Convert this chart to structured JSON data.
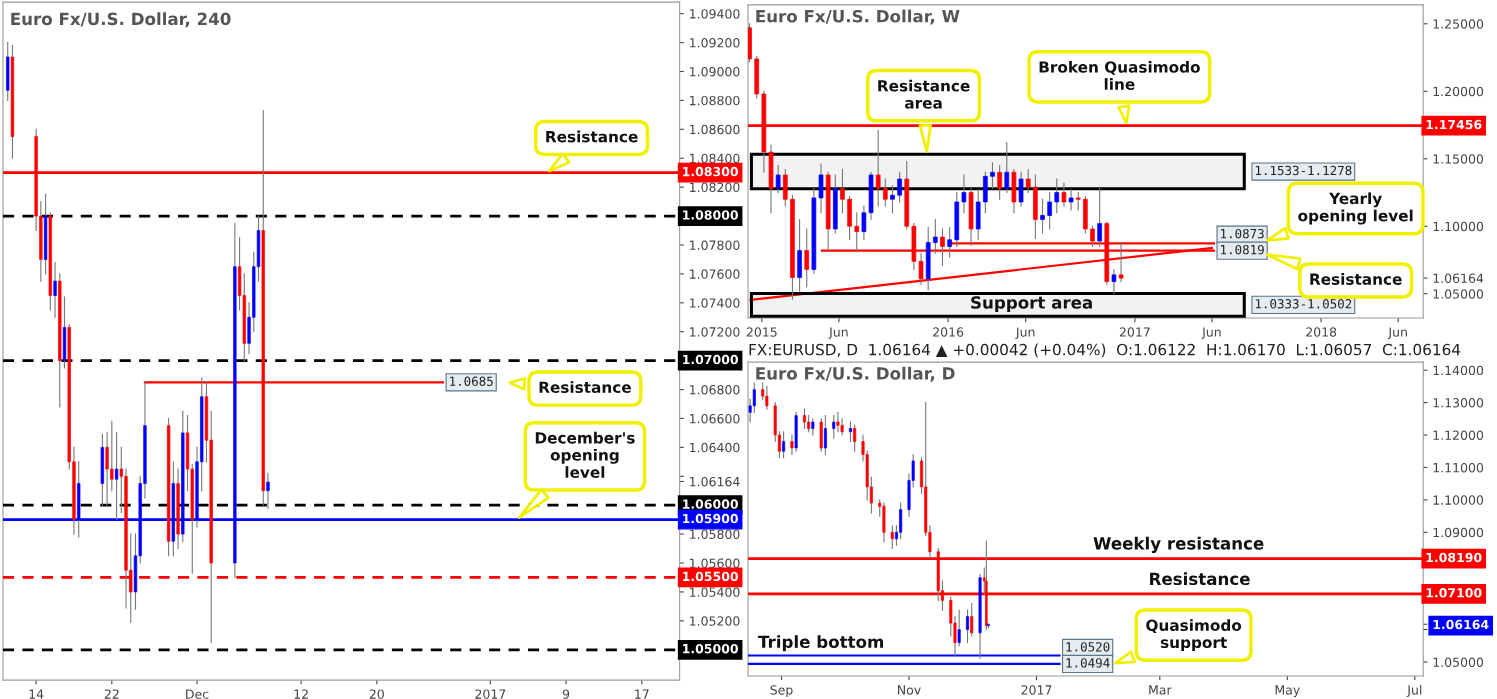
{
  "chart_data": [
    {
      "type": "candlestick",
      "title": "Euro Fx/U.S. Dollar, 240",
      "x": [
        "2016-11-11T00:00",
        "2016-11-11T12:00",
        "2016-11-14T00:00",
        "2016-11-14T12:00",
        "2016-11-15T00:00",
        "2016-11-15T12:00",
        "2016-11-16T00:00",
        "2016-11-16T12:00",
        "2016-11-17T00:00",
        "2016-11-17T12:00",
        "2016-11-18T00:00",
        "2016-11-18T12:00",
        "2016-11-21T00:00",
        "2016-11-21T12:00",
        "2016-11-22T00:00",
        "2016-11-22T12:00",
        "2016-11-23T00:00",
        "2016-11-23T12:00",
        "2016-11-24T00:00",
        "2016-11-24T12:00",
        "2016-11-25T00:00",
        "2016-11-25T12:00",
        "2016-11-28T00:00",
        "2016-11-28T12:00",
        "2016-11-29T00:00",
        "2016-11-29T12:00",
        "2016-11-30T00:00",
        "2016-11-30T12:00",
        "2016-12-01T00:00",
        "2016-12-01T12:00",
        "2016-12-02T00:00",
        "2016-12-02T12:00",
        "2016-12-05T00:00",
        "2016-12-05T12:00",
        "2016-12-06T00:00",
        "2016-12-06T12:00",
        "2016-12-07T00:00",
        "2016-12-07T12:00",
        "2016-12-08T00:00",
        "2016-12-08T12:00"
      ],
      "ohlc": [
        [
          1.0887,
          1.092,
          1.088,
          1.091
        ],
        [
          1.091,
          1.0918,
          1.084,
          1.0855
        ],
        [
          1.0855,
          1.086,
          1.079,
          1.08
        ],
        [
          1.08,
          1.081,
          1.0755,
          1.077
        ],
        [
          1.077,
          1.0815,
          1.076,
          1.08
        ],
        [
          1.08,
          1.0802,
          1.0735,
          1.0745
        ],
        [
          1.0745,
          1.0768,
          1.073,
          1.0755
        ],
        [
          1.0755,
          1.076,
          1.0668,
          1.07
        ],
        [
          1.07,
          1.0744,
          1.0695,
          1.0723
        ],
        [
          1.0723,
          1.0725,
          1.0625,
          1.063
        ],
        [
          1.063,
          1.064,
          1.058,
          1.059
        ],
        [
          1.059,
          1.063,
          1.0578,
          1.0615
        ],
        [
          1.0615,
          1.0649,
          1.06,
          1.064
        ],
        [
          1.064,
          1.065,
          1.06,
          1.0625
        ],
        [
          1.0625,
          1.0658,
          1.061,
          1.0618
        ],
        [
          1.0618,
          1.065,
          1.059,
          1.0625
        ],
        [
          1.0625,
          1.064,
          1.0595,
          1.062
        ],
        [
          1.062,
          1.0625,
          1.0529,
          1.0555
        ],
        [
          1.0555,
          1.058,
          1.0519,
          1.054
        ],
        [
          1.054,
          1.058,
          1.0528,
          1.0565
        ],
        [
          1.0565,
          1.062,
          1.056,
          1.0615
        ],
        [
          1.0615,
          1.0685,
          1.0605,
          1.0655
        ],
        [
          1.0655,
          1.066,
          1.0565,
          1.0575
        ],
        [
          1.0575,
          1.063,
          1.0565,
          1.0615
        ],
        [
          1.0615,
          1.0625,
          1.057,
          1.058
        ],
        [
          1.058,
          1.0665,
          1.0575,
          1.065
        ],
        [
          1.065,
          1.0662,
          1.061,
          1.0625
        ],
        [
          1.0625,
          1.0628,
          1.0553,
          1.059
        ],
        [
          1.059,
          1.064,
          1.0585,
          1.063
        ],
        [
          1.063,
          1.0688,
          1.061,
          1.0675
        ],
        [
          1.0675,
          1.0685,
          1.063,
          1.0645
        ],
        [
          1.0645,
          1.0665,
          1.0505,
          1.056
        ],
        [
          1.056,
          1.0795,
          1.055,
          1.0765
        ],
        [
          1.0765,
          1.0785,
          1.0735,
          1.0745
        ],
        [
          1.0745,
          1.076,
          1.0699,
          1.0712
        ],
        [
          1.0712,
          1.074,
          1.0705,
          1.073
        ],
        [
          1.073,
          1.0775,
          1.072,
          1.0765
        ],
        [
          1.0765,
          1.08,
          1.0755,
          1.079
        ],
        [
          1.079,
          1.0873,
          1.06,
          1.061
        ],
        [
          1.061,
          1.0622,
          1.0598,
          1.0616
        ]
      ],
      "colors": [
        "#0000ff",
        "#ff0000",
        "#ff0000",
        "#ff0000",
        "#0000ff",
        "#ff0000",
        "#0000ff",
        "#ff0000",
        "#0000ff",
        "#ff0000",
        "#ff0000",
        "#0000ff",
        "#0000ff",
        "#ff0000",
        "#ff0000",
        "#0000ff",
        "#ff0000",
        "#ff0000",
        "#ff0000",
        "#0000ff",
        "#0000ff",
        "#0000ff",
        "#ff0000",
        "#0000ff",
        "#ff0000",
        "#0000ff",
        "#ff0000",
        "#ff0000",
        "#0000ff",
        "#0000ff",
        "#ff0000",
        "#ff0000",
        "#0000ff",
        "#ff0000",
        "#ff0000",
        "#0000ff",
        "#0000ff",
        "#0000ff",
        "#ff0000",
        "#0000ff"
      ],
      "series": [
        {
          "type": "line",
          "x": [
            "2016-11-25T12:00",
            "2016-12-27"
          ],
          "values": [
            1.0685,
            1.0685
          ],
          "color": "#ff0000",
          "value_labels": [
            null,
            "1.0685"
          ]
        }
      ],
      "xlim": [
        "2016-11-10T12:00",
        "2017-01-21"
      ],
      "xticks": [
        {
          "value": "2016-11-14",
          "label": "14"
        },
        {
          "value": "2016-11-22",
          "label": "22"
        },
        {
          "value": "2016-12-01",
          "label": "Dec"
        },
        {
          "value": "2016-12-12",
          "label": "12"
        },
        {
          "value": "2016-12-20",
          "label": "20"
        },
        {
          "value": "2017-01-01",
          "label": "2017"
        },
        {
          "value": "2017-01-09",
          "label": "9"
        },
        {
          "value": "2017-01-17",
          "label": "17"
        }
      ],
      "ylim": [
        1.0479,
        1.0948
      ],
      "yticks": [
        {
          "value": 1.05,
          "label": null
        },
        {
          "value": 1.052,
          "label": "1.05200"
        },
        {
          "value": 1.054,
          "label": "1.05400"
        },
        {
          "value": 1.056,
          "label": "1.05600"
        },
        {
          "value": 1.058,
          "label": "1.05800"
        },
        {
          "value": 1.06,
          "label": null
        },
        {
          "value": 1.06164,
          "label": "1.06164"
        },
        {
          "value": 1.062,
          "label": null
        },
        {
          "value": 1.064,
          "label": "1.06400"
        },
        {
          "value": 1.066,
          "label": "1.06600"
        },
        {
          "value": 1.068,
          "label": "1.06800"
        },
        {
          "value": 1.07,
          "label": null
        },
        {
          "value": 1.072,
          "label": "1.07200"
        },
        {
          "value": 1.074,
          "label": "1.07400"
        },
        {
          "value": 1.076,
          "label": "1.07600"
        },
        {
          "value": 1.078,
          "label": "1.07800"
        },
        {
          "value": 1.08,
          "label": null
        },
        {
          "value": 1.082,
          "label": "1.08200"
        },
        {
          "value": 1.084,
          "label": "1.08400"
        },
        {
          "value": 1.086,
          "label": "1.08600"
        },
        {
          "value": 1.088,
          "label": "1.08800"
        },
        {
          "value": 1.09,
          "label": "1.09000"
        },
        {
          "value": 1.092,
          "label": "1.09200"
        },
        {
          "value": 1.094,
          "label": "1.09400"
        }
      ],
      "ref_lines": [
        {
          "axis": "y",
          "value": 1.083,
          "label": "1.08300",
          "color": "#ff0000",
          "line_style": "solid"
        },
        {
          "axis": "y",
          "value": 1.08,
          "label": "1.08000",
          "color": "#000000",
          "line_style": "dashed"
        },
        {
          "axis": "y",
          "value": 1.07,
          "label": "1.07000",
          "color": "#000000",
          "line_style": "dashed"
        },
        {
          "axis": "y",
          "value": 1.06,
          "label": "1.06000",
          "color": "#000000",
          "line_style": "dashed"
        },
        {
          "axis": "y",
          "value": 1.059,
          "label": "1.05900",
          "color": "#0000ff",
          "line_style": "solid"
        },
        {
          "axis": "y",
          "value": 1.055,
          "label": "1.05500",
          "color": "#ff0000",
          "line_style": "dashed"
        },
        {
          "axis": "y",
          "value": 1.05,
          "label": "1.05000",
          "color": "#000000",
          "line_style": "dashed"
        }
      ],
      "annotations": [
        {
          "text": "Resistance",
          "x": "2017-01-07",
          "y": 1.083
        },
        "Resistance",
        "December's\nopening\nlevel"
      ]
    },
    {
      "type": "candlestick",
      "title": "Euro Fx/U.S. Dollar, W",
      "x": [
        "2014-12-08",
        "2014-12-22",
        "2015-01-05",
        "2015-01-19",
        "2015-02-02",
        "2015-02-16",
        "2015-03-02",
        "2015-03-16",
        "2015-03-30",
        "2015-04-13",
        "2015-04-27",
        "2015-05-11",
        "2015-05-25",
        "2015-06-08",
        "2015-06-22",
        "2015-07-06",
        "2015-07-20",
        "2015-08-03",
        "2015-08-17",
        "2015-08-31",
        "2015-09-14",
        "2015-09-28",
        "2015-10-12",
        "2015-10-26",
        "2015-11-09",
        "2015-11-23",
        "2015-12-07",
        "2015-12-21",
        "2016-01-04",
        "2016-01-18",
        "2016-02-01",
        "2016-02-15",
        "2016-02-29",
        "2016-03-14",
        "2016-03-28",
        "2016-04-11",
        "2016-04-25",
        "2016-05-09",
        "2016-05-23",
        "2016-06-06",
        "2016-06-20",
        "2016-07-04",
        "2016-07-18",
        "2016-08-01",
        "2016-08-15",
        "2016-08-29",
        "2016-09-12",
        "2016-09-26",
        "2016-10-10",
        "2016-10-24",
        "2016-11-07",
        "2016-11-21",
        "2016-12-05"
      ],
      "ohlc": [
        [
          1.247,
          1.25,
          1.222,
          1.224
        ],
        [
          1.224,
          1.226,
          1.195,
          1.198
        ],
        [
          1.198,
          1.2,
          1.14,
          1.155
        ],
        [
          1.155,
          1.16,
          1.11,
          1.128
        ],
        [
          1.128,
          1.145,
          1.125,
          1.138
        ],
        [
          1.138,
          1.142,
          1.115,
          1.12
        ],
        [
          1.12,
          1.123,
          1.046,
          1.062
        ],
        [
          1.062,
          1.105,
          1.052,
          1.082
        ],
        [
          1.082,
          1.098,
          1.055,
          1.068
        ],
        [
          1.068,
          1.128,
          1.065,
          1.121
        ],
        [
          1.121,
          1.146,
          1.11,
          1.138
        ],
        [
          1.138,
          1.14,
          1.082,
          1.098
        ],
        [
          1.098,
          1.138,
          1.095,
          1.128
        ],
        [
          1.128,
          1.142,
          1.11,
          1.12
        ],
        [
          1.12,
          1.122,
          1.09,
          1.1
        ],
        [
          1.1,
          1.11,
          1.081,
          1.096
        ],
        [
          1.096,
          1.115,
          1.09,
          1.11
        ],
        [
          1.11,
          1.14,
          1.105,
          1.138
        ],
        [
          1.138,
          1.171,
          1.115,
          1.128
        ],
        [
          1.128,
          1.135,
          1.115,
          1.12
        ],
        [
          1.12,
          1.13,
          1.11,
          1.123
        ],
        [
          1.123,
          1.14,
          1.118,
          1.135
        ],
        [
          1.135,
          1.148,
          1.098,
          1.1
        ],
        [
          1.1,
          1.102,
          1.068,
          1.074
        ],
        [
          1.074,
          1.08,
          1.057,
          1.061
        ],
        [
          1.061,
          1.099,
          1.053,
          1.088
        ],
        [
          1.088,
          1.105,
          1.08,
          1.092
        ],
        [
          1.092,
          1.098,
          1.071,
          1.085
        ],
        [
          1.085,
          1.099,
          1.077,
          1.09
        ],
        [
          1.09,
          1.125,
          1.085,
          1.118
        ],
        [
          1.118,
          1.138,
          1.11,
          1.125
        ],
        [
          1.125,
          1.128,
          1.086,
          1.098
        ],
        [
          1.098,
          1.127,
          1.09,
          1.118
        ],
        [
          1.118,
          1.14,
          1.11,
          1.137
        ],
        [
          1.137,
          1.147,
          1.128,
          1.14
        ],
        [
          1.14,
          1.145,
          1.12,
          1.128
        ],
        [
          1.128,
          1.162,
          1.125,
          1.14
        ],
        [
          1.14,
          1.142,
          1.11,
          1.118
        ],
        [
          1.118,
          1.14,
          1.115,
          1.135
        ],
        [
          1.135,
          1.142,
          1.125,
          1.129
        ],
        [
          1.129,
          1.138,
          1.091,
          1.105
        ],
        [
          1.105,
          1.12,
          1.095,
          1.108
        ],
        [
          1.108,
          1.125,
          1.098,
          1.118
        ],
        [
          1.118,
          1.135,
          1.11,
          1.125
        ],
        [
          1.125,
          1.132,
          1.115,
          1.118
        ],
        [
          1.118,
          1.127,
          1.112,
          1.121
        ],
        [
          1.121,
          1.125,
          1.112,
          1.12
        ],
        [
          1.12,
          1.122,
          1.095,
          1.098
        ],
        [
          1.098,
          1.1,
          1.085,
          1.089
        ],
        [
          1.089,
          1.129,
          1.085,
          1.102
        ],
        [
          1.102,
          1.103,
          1.057,
          1.059
        ],
        [
          1.059,
          1.068,
          1.05,
          1.064
        ],
        [
          1.064,
          1.088,
          1.059,
          1.0616
        ]
      ],
      "colors": [
        "#ff0000",
        "#ff0000",
        "#ff0000",
        "#ff0000",
        "#0000ff",
        "#ff0000",
        "#ff0000",
        "#0000ff",
        "#ff0000",
        "#0000ff",
        "#0000ff",
        "#ff0000",
        "#0000ff",
        "#ff0000",
        "#ff0000",
        "#ff0000",
        "#0000ff",
        "#0000ff",
        "#ff0000",
        "#ff0000",
        "#0000ff",
        "#0000ff",
        "#ff0000",
        "#ff0000",
        "#ff0000",
        "#0000ff",
        "#0000ff",
        "#ff0000",
        "#0000ff",
        "#0000ff",
        "#0000ff",
        "#ff0000",
        "#0000ff",
        "#0000ff",
        "#0000ff",
        "#ff0000",
        "#0000ff",
        "#ff0000",
        "#0000ff",
        "#ff0000",
        "#ff0000",
        "#0000ff",
        "#0000ff",
        "#0000ff",
        "#ff0000",
        "#0000ff",
        "#ff0000",
        "#ff0000",
        "#ff0000",
        "#0000ff",
        "#ff0000",
        "#0000ff",
        "#ff0000"
      ],
      "series": [
        {
          "type": "line",
          "x": [
            "2016-01-08",
            "2017-06-05"
          ],
          "values": [
            1.0873,
            1.0873
          ],
          "color": "#ff0000",
          "value_labels": [
            null,
            "1.0873"
          ]
        },
        {
          "type": "line",
          "x": [
            "2015-04-29",
            "2017-06-05"
          ],
          "values": [
            1.0819,
            1.0819
          ],
          "color": "#ff0000",
          "value_labels": [
            null,
            "1.0819"
          ]
        },
        {
          "type": "line",
          "x": [
            "2014-12-10",
            "2017-06-01"
          ],
          "values": [
            1.0455,
            1.0839
          ],
          "color": "#ff0000"
        }
      ],
      "bands": [
        {
          "axis": "y",
          "from": 1.1278,
          "to": 1.1533,
          "label": "1.1533-1.1278",
          "color": "#000000"
        },
        {
          "axis": "y",
          "from": 1.0333,
          "to": 1.0502,
          "label": "1.0333-1.0502",
          "color": "#000000"
        }
      ],
      "xlim": [
        "2014-12-05",
        "2018-07-20"
      ],
      "xticks": [
        {
          "value": "2015-01-01",
          "label": "2015"
        },
        {
          "value": "2015-06-01",
          "label": "Jun"
        },
        {
          "value": "2016-01-01",
          "label": "2016"
        },
        {
          "value": "2016-06-01",
          "label": "Jun"
        },
        {
          "value": "2017-01-01",
          "label": "2017"
        },
        {
          "value": "2017-06-01",
          "label": "Jun"
        },
        {
          "value": "2018-01-01",
          "label": "2018"
        },
        {
          "value": "2018-06-01",
          "label": "Jun"
        }
      ],
      "ylim": [
        1.032,
        1.264
      ],
      "yticks": [
        {
          "value": 1.05,
          "label": "1.05000"
        },
        {
          "value": 1.06164,
          "label": "1.06164"
        },
        {
          "value": 1.1,
          "label": "1.10000"
        },
        {
          "value": 1.15,
          "label": "1.15000"
        },
        {
          "value": 1.2,
          "label": "1.20000"
        },
        {
          "value": 1.25,
          "label": "1.25000"
        }
      ],
      "ref_lines": [
        {
          "axis": "y",
          "value": 1.17456,
          "label": "1.17456",
          "color": "#ff0000",
          "line_style": "solid"
        }
      ],
      "annotations": [
        "Resistance\narea",
        "Broken Quasimodo\nline",
        "Yearly\nopening level",
        "Resistance",
        "Support area"
      ]
    },
    {
      "type": "candlestick",
      "title": "Euro Fx/U.S. Dollar, D",
      "subtitle": "FX:EURUSD, D  1.06164 ▲ +0.00042 (+0.04%)  O:1.06122  H:1.06170  L:1.06057  C:1.06164",
      "x": [
        "2016-08-17",
        "2016-08-19",
        "2016-08-23",
        "2016-08-25",
        "2016-08-29",
        "2016-08-31",
        "2016-09-02",
        "2016-09-06",
        "2016-09-08",
        "2016-09-12",
        "2016-09-14",
        "2016-09-16",
        "2016-09-20",
        "2016-09-22",
        "2016-09-26",
        "2016-09-28",
        "2016-09-30",
        "2016-10-04",
        "2016-10-06",
        "2016-10-10",
        "2016-10-12",
        "2016-10-14",
        "2016-10-18",
        "2016-10-20",
        "2016-10-24",
        "2016-10-26",
        "2016-10-28",
        "2016-11-01",
        "2016-11-03",
        "2016-11-07",
        "2016-11-09",
        "2016-11-11",
        "2016-11-15",
        "2016-11-17",
        "2016-11-21",
        "2016-11-23",
        "2016-11-25",
        "2016-11-29",
        "2016-12-01",
        "2016-12-05",
        "2016-12-07",
        "2016-12-08",
        "2016-12-09"
      ],
      "ohlc": [
        [
          1.127,
          1.131,
          1.124,
          1.129
        ],
        [
          1.129,
          1.136,
          1.127,
          1.134
        ],
        [
          1.134,
          1.136,
          1.131,
          1.132
        ],
        [
          1.132,
          1.135,
          1.128,
          1.129
        ],
        [
          1.129,
          1.13,
          1.118,
          1.12
        ],
        [
          1.12,
          1.121,
          1.113,
          1.115
        ],
        [
          1.115,
          1.121,
          1.113,
          1.118
        ],
        [
          1.118,
          1.12,
          1.114,
          1.116
        ],
        [
          1.116,
          1.127,
          1.115,
          1.126
        ],
        [
          1.126,
          1.128,
          1.122,
          1.124
        ],
        [
          1.124,
          1.126,
          1.121,
          1.122
        ],
        [
          1.122,
          1.125,
          1.12,
          1.124
        ],
        [
          1.124,
          1.125,
          1.115,
          1.116
        ],
        [
          1.116,
          1.126,
          1.114,
          1.122
        ],
        [
          1.122,
          1.126,
          1.119,
          1.124
        ],
        [
          1.124,
          1.127,
          1.121,
          1.123
        ],
        [
          1.123,
          1.125,
          1.12,
          1.121
        ],
        [
          1.121,
          1.124,
          1.118,
          1.122
        ],
        [
          1.122,
          1.123,
          1.115,
          1.118
        ],
        [
          1.118,
          1.12,
          1.112,
          1.114
        ],
        [
          1.114,
          1.115,
          1.1,
          1.104
        ],
        [
          1.104,
          1.107,
          1.096,
          1.099
        ],
        [
          1.099,
          1.1,
          1.095,
          1.098
        ],
        [
          1.098,
          1.099,
          1.087,
          1.09
        ],
        [
          1.09,
          1.092,
          1.085,
          1.088
        ],
        [
          1.088,
          1.092,
          1.086,
          1.09
        ],
        [
          1.09,
          1.099,
          1.088,
          1.097
        ],
        [
          1.097,
          1.108,
          1.095,
          1.106
        ],
        [
          1.106,
          1.114,
          1.104,
          1.112
        ],
        [
          1.112,
          1.113,
          1.102,
          1.104
        ],
        [
          1.104,
          1.13,
          1.089,
          1.09
        ],
        [
          1.09,
          1.092,
          1.082,
          1.084
        ],
        [
          1.084,
          1.085,
          1.069,
          1.072
        ],
        [
          1.072,
          1.075,
          1.066,
          1.069
        ],
        [
          1.069,
          1.07,
          1.058,
          1.062
        ],
        [
          1.062,
          1.064,
          1.052,
          1.056
        ],
        [
          1.056,
          1.066,
          1.055,
          1.06
        ],
        [
          1.06,
          1.066,
          1.056,
          1.064
        ],
        [
          1.064,
          1.068,
          1.058,
          1.059
        ],
        [
          1.059,
          1.077,
          1.0512,
          1.076
        ],
        [
          1.076,
          1.079,
          1.071,
          1.075
        ],
        [
          1.075,
          1.0873,
          1.06,
          1.0612
        ],
        [
          1.06122,
          1.0617,
          1.06057,
          1.06164
        ]
      ],
      "colors": [
        "#0000ff",
        "#0000ff",
        "#ff0000",
        "#ff0000",
        "#ff0000",
        "#ff0000",
        "#0000ff",
        "#ff0000",
        "#0000ff",
        "#ff0000",
        "#ff0000",
        "#0000ff",
        "#ff0000",
        "#0000ff",
        "#0000ff",
        "#ff0000",
        "#ff0000",
        "#0000ff",
        "#ff0000",
        "#ff0000",
        "#ff0000",
        "#ff0000",
        "#ff0000",
        "#ff0000",
        "#ff0000",
        "#0000ff",
        "#0000ff",
        "#0000ff",
        "#0000ff",
        "#ff0000",
        "#ff0000",
        "#ff0000",
        "#ff0000",
        "#ff0000",
        "#ff0000",
        "#ff0000",
        "#0000ff",
        "#0000ff",
        "#ff0000",
        "#0000ff",
        "#ff0000",
        "#ff0000",
        "#0000ff"
      ],
      "series": [
        {
          "type": "line",
          "x": [
            "2016-08-16",
            "2017-01-12"
          ],
          "values": [
            1.052,
            1.052
          ],
          "color": "#0000ff",
          "value_labels": [
            null,
            "1.0520"
          ]
        },
        {
          "type": "line",
          "x": [
            "2016-08-16",
            "2017-01-12"
          ],
          "values": [
            1.0494,
            1.0494
          ],
          "color": "#0000ff",
          "value_labels": [
            null,
            "1.0494"
          ]
        }
      ],
      "xlim": [
        "2016-08-16",
        "2017-07-05"
      ],
      "xticks": [
        {
          "value": "2016-09-01",
          "label": "Sep"
        },
        {
          "value": "2016-11-01",
          "label": "Nov"
        },
        {
          "value": "2017-01-01",
          "label": "2017"
        },
        {
          "value": "2017-03-01",
          "label": "Mar"
        },
        {
          "value": "2017-05-01",
          "label": "May"
        },
        {
          "value": "2017-07-01",
          "label": "Jul"
        }
      ],
      "ylim": [
        1.0457,
        1.1425
      ],
      "yticks": [
        {
          "value": 1.05,
          "label": "1.05000"
        },
        {
          "value": 1.06,
          "label": null
        },
        {
          "value": 1.06164,
          "label": "1.06164"
        },
        {
          "value": 1.07,
          "label": null
        },
        {
          "value": 1.08,
          "label": null
        },
        {
          "value": 1.09,
          "label": "1.09000"
        },
        {
          "value": 1.1,
          "label": "1.10000"
        },
        {
          "value": 1.11,
          "label": "1.11000"
        },
        {
          "value": 1.12,
          "label": "1.12000"
        },
        {
          "value": 1.13,
          "label": "1.13000"
        },
        {
          "value": 1.14,
          "label": "1.14000"
        }
      ],
      "ref_lines": [
        {
          "axis": "y",
          "value": 1.0819,
          "label": "1.08190",
          "color": "#ff0000",
          "line_style": "solid"
        },
        {
          "axis": "y",
          "value": 1.071,
          "label": "1.07100",
          "color": "#ff0000",
          "line_style": "solid"
        }
      ],
      "annotations": [
        {
          "text": "Weekly resistance",
          "x": "2017-03-10",
          "y": 1.0819
        },
        {
          "text": "Resistance",
          "x": "2017-03-20",
          "y": 1.071
        },
        {
          "text": "Triple bottom",
          "x": "2016-09-20",
          "y": 1.052
        },
        "Quasimodo\nsupport"
      ]
    }
  ]
}
